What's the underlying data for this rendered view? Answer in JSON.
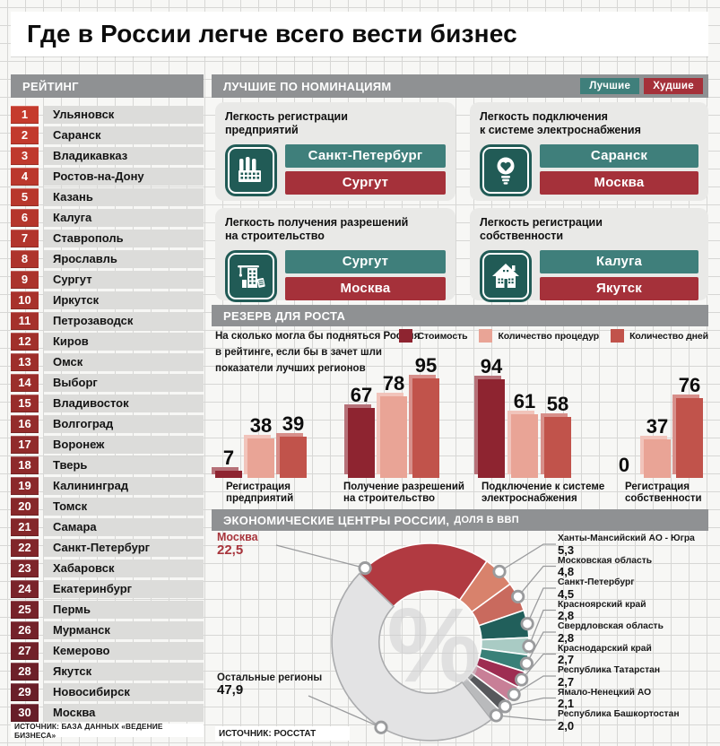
{
  "title": "Где в России легче всего вести бизнес",
  "rating": {
    "header": "РЕЙТИНГ",
    "source": "ИСТОЧНИК: БАЗА ДАННЫХ «ВЕДЕНИЕ БИЗНЕСА»",
    "badge_color_start": "#c53b2d",
    "badge_color_end": "#671e29",
    "items": [
      "Ульяновск",
      "Саранск",
      "Владикавказ",
      "Ростов-на-Дону",
      "Казань",
      "Калуга",
      "Ставрополь",
      "Ярославль",
      "Сургут",
      "Иркутск",
      "Петрозаводск",
      "Киров",
      "Омск",
      "Выборг",
      "Владивосток",
      "Волгоград",
      "Воронеж",
      "Тверь",
      "Калининград",
      "Томск",
      "Самара",
      "Санкт-Петербург",
      "Хабаровск",
      "Екатеринбург",
      "Пермь",
      "Мурманск",
      "Кемерово",
      "Якутск",
      "Новосибирск",
      "Москва"
    ]
  },
  "nominations": {
    "header": "ЛУЧШИЕ ПО НОМИНАЦИЯМ",
    "legend_best": "Лучшие",
    "legend_worst": "Худшие",
    "colors": {
      "best": "#3f7f7b",
      "worst": "#a5313a"
    },
    "cards": [
      {
        "title_line1": "Легкость регистрации",
        "title_line2": "предприятий",
        "icon": "factory-icon",
        "best": "Санкт-Петербург",
        "worst": "Сургут"
      },
      {
        "title_line1": "Легкость подключения",
        "title_line2": "к системе электроснабжения",
        "icon": "lightbulb-icon",
        "best": "Саранск",
        "worst": "Москва"
      },
      {
        "title_line1": "Легкость получения разрешений",
        "title_line2": "на строительство",
        "icon": "crane-icon",
        "best": "Сургут",
        "worst": "Москва"
      },
      {
        "title_line1": "Легкость регистрации",
        "title_line2": "собственности",
        "icon": "house-icon",
        "best": "Калуга",
        "worst": "Якутск"
      }
    ]
  },
  "growth": {
    "header": "РЕЗЕРВ ДЛЯ РОСТА",
    "note_lines": [
      "На сколько могла бы подняться Россия",
      "в рейтинге, если бы в зачет шли",
      "показатели лучших регионов"
    ]
  },
  "econ": {
    "header_main": "ЭКОНОМИЧЕСКИЕ ЦЕНТРЫ РОССИИ,",
    "header_sub": "ДОЛЯ В ВВП",
    "source": "ИСТОЧНИК: РОССТАТ",
    "center_symbol": "%"
  },
  "chart_data": [
    {
      "type": "bar",
      "title": "РЕЗЕРВ ДЛЯ РОСТА",
      "note": "На сколько могла бы подняться Россия в рейтинге, если бы в зачет шли показатели лучших регионов",
      "categories": [
        "Регистрация предприятий",
        "Получение разрешений на строительство",
        "Подключение к системе электроснабжения",
        "Регистрация собственности"
      ],
      "category_lines": [
        [
          "Регистрация",
          "предприятий"
        ],
        [
          "Получение разрешений",
          "на строительство"
        ],
        [
          "Подключение к системе",
          "электроснабжения"
        ],
        [
          "Регистрация",
          "собственности"
        ]
      ],
      "series": [
        {
          "name": "Стоимость",
          "color": "#8e2430",
          "values": [
            7,
            67,
            94,
            0
          ]
        },
        {
          "name": "Количество процедур",
          "color": "#e9a496",
          "values": [
            38,
            78,
            61,
            37
          ]
        },
        {
          "name": "Количество дней",
          "color": "#c1534b",
          "values": [
            39,
            95,
            58,
            76
          ]
        }
      ],
      "ylim": [
        0,
        100
      ],
      "grid": false,
      "legend_position": "top-right"
    },
    {
      "type": "pie",
      "title": "ЭКОНОМИЧЕСКИЕ ЦЕНТРЫ РОССИИ, ДОЛЯ В ВВП",
      "donut": true,
      "center_symbol": "%",
      "slices": [
        {
          "label": "Москва",
          "value": 22.5,
          "display": "22,5",
          "color": "#b13a41",
          "side": "left"
        },
        {
          "label": "Ханты-Мансийский АО - Югра",
          "value": 5.3,
          "display": "5,3",
          "color": "#d8826c",
          "side": "right"
        },
        {
          "label": "Московская область",
          "value": 4.8,
          "display": "4,8",
          "color": "#c96a5e",
          "side": "right"
        },
        {
          "label": "Санкт-Петербург",
          "value": 4.5,
          "display": "4,5",
          "color": "#215f5b",
          "side": "right"
        },
        {
          "label": "Красноярский край",
          "value": 2.8,
          "display": "2,8",
          "color": "#a9cbc4",
          "side": "right"
        },
        {
          "label": "Свердловская область",
          "value": 2.8,
          "display": "2,8",
          "color": "#398078",
          "side": "right"
        },
        {
          "label": "Краснодарский край",
          "value": 2.7,
          "display": "2,7",
          "color": "#9e2d52",
          "side": "right"
        },
        {
          "label": "Республика Татарстан",
          "value": 2.7,
          "display": "2,7",
          "color": "#c87f97",
          "side": "right"
        },
        {
          "label": "Ямало-Ненецкий АО",
          "value": 2.1,
          "display": "2,1",
          "color": "#57585c",
          "side": "right"
        },
        {
          "label": "Республика Башкортостан",
          "value": 2.0,
          "display": "2,0",
          "color": "#b9babc",
          "side": "right"
        },
        {
          "label": "Остальные регионы",
          "value": 47.9,
          "display": "47,9",
          "color": "#e3e3e4",
          "side": "left"
        }
      ]
    }
  ]
}
